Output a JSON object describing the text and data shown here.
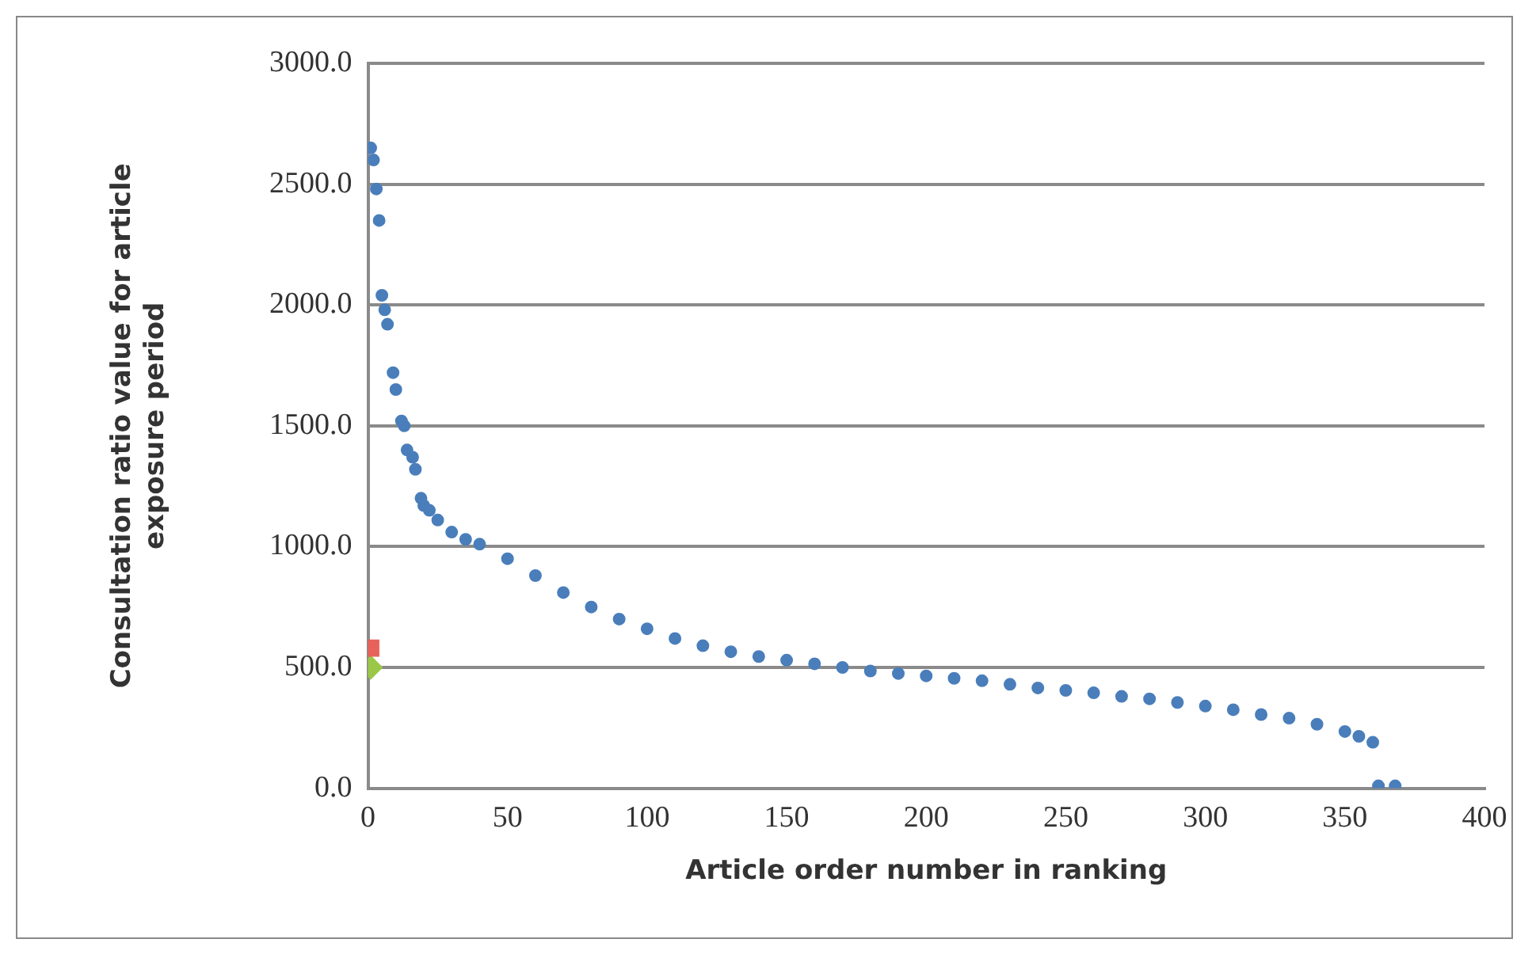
{
  "chart_data": {
    "type": "scatter",
    "xlabel": "Article order number in ranking",
    "ylabel": "Consultation ratio value for article exposure period",
    "xlim": [
      0,
      400
    ],
    "xticks": [
      0,
      50,
      100,
      150,
      200,
      250,
      300,
      350,
      400
    ],
    "ylim": [
      0,
      3000
    ],
    "yticks": [
      {
        "value": 0,
        "label": "0.0"
      },
      {
        "value": 500,
        "label": "500.0"
      },
      {
        "value": 1000,
        "label": "1000.0"
      },
      {
        "value": 1500,
        "label": "1500.0"
      },
      {
        "value": 2000,
        "label": "2000.0"
      },
      {
        "value": 2500,
        "label": "2500.0"
      },
      {
        "value": 3000,
        "label": "3000.0"
      }
    ],
    "grid": "y",
    "legend": false,
    "series": [
      {
        "color": "#4a7ebb",
        "marker": "circle",
        "x": [
          1,
          2,
          3,
          4,
          5,
          6,
          7,
          9,
          10,
          12,
          13,
          14,
          16,
          17,
          19,
          20,
          22,
          25,
          30,
          35,
          40,
          50,
          60,
          70,
          80,
          90,
          100,
          110,
          120,
          130,
          140,
          150,
          160,
          170,
          180,
          190,
          200,
          210,
          220,
          230,
          240,
          250,
          260,
          270,
          280,
          290,
          300,
          310,
          320,
          330,
          340,
          350,
          355,
          360,
          362,
          368
        ],
        "values": [
          2650,
          2600,
          2480,
          2350,
          2040,
          1980,
          1920,
          1720,
          1650,
          1520,
          1500,
          1400,
          1370,
          1320,
          1200,
          1170,
          1150,
          1110,
          1060,
          1030,
          1010,
          950,
          880,
          810,
          750,
          700,
          660,
          620,
          590,
          565,
          545,
          530,
          515,
          500,
          485,
          475,
          465,
          455,
          445,
          430,
          415,
          405,
          395,
          380,
          370,
          355,
          340,
          325,
          305,
          290,
          265,
          235,
          215,
          190,
          10,
          10
        ]
      },
      {
        "color": "#e8625a",
        "marker": "square",
        "x": [
          1
        ],
        "values": [
          580
        ]
      },
      {
        "color": "#9bc748",
        "marker": "diamond",
        "x": [
          1
        ],
        "values": [
          500
        ]
      }
    ]
  }
}
